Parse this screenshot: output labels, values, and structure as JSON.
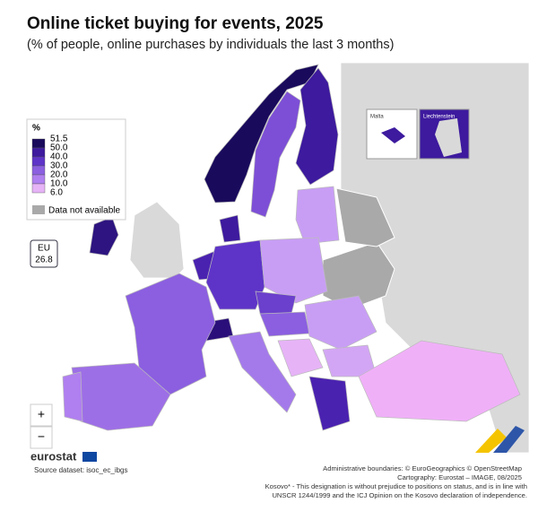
{
  "header": {
    "title": "Online ticket buying for events, 2025",
    "subtitle": "(% of people, online purchases by individuals the last 3 months)"
  },
  "legend": {
    "title": "%",
    "classes": [
      "51.5",
      "50.0",
      "40.0",
      "30.0",
      "20.0",
      "10.0",
      "6.0"
    ],
    "na": "Data not available"
  },
  "eu": {
    "label": "EU",
    "value": "26.8"
  },
  "insets": [
    "Malta",
    "Liechtenstein"
  ],
  "zoom": [
    "+",
    "−"
  ],
  "footer": {
    "logo": "eurostat",
    "source": "Source dataset: isoc_ec_ibgs",
    "credits": [
      "Administrative boundaries: © EuroGeographics © OpenStreetMap",
      "Cartography: Eurostat – IMAGE, 08/2025",
      "Kosovo* - This designation is without prejudice to positions on status, and is in line with",
      "UNSCR 1244/1999 and the ICJ Opinion on the Kosovo declaration of independence."
    ]
  }
}
